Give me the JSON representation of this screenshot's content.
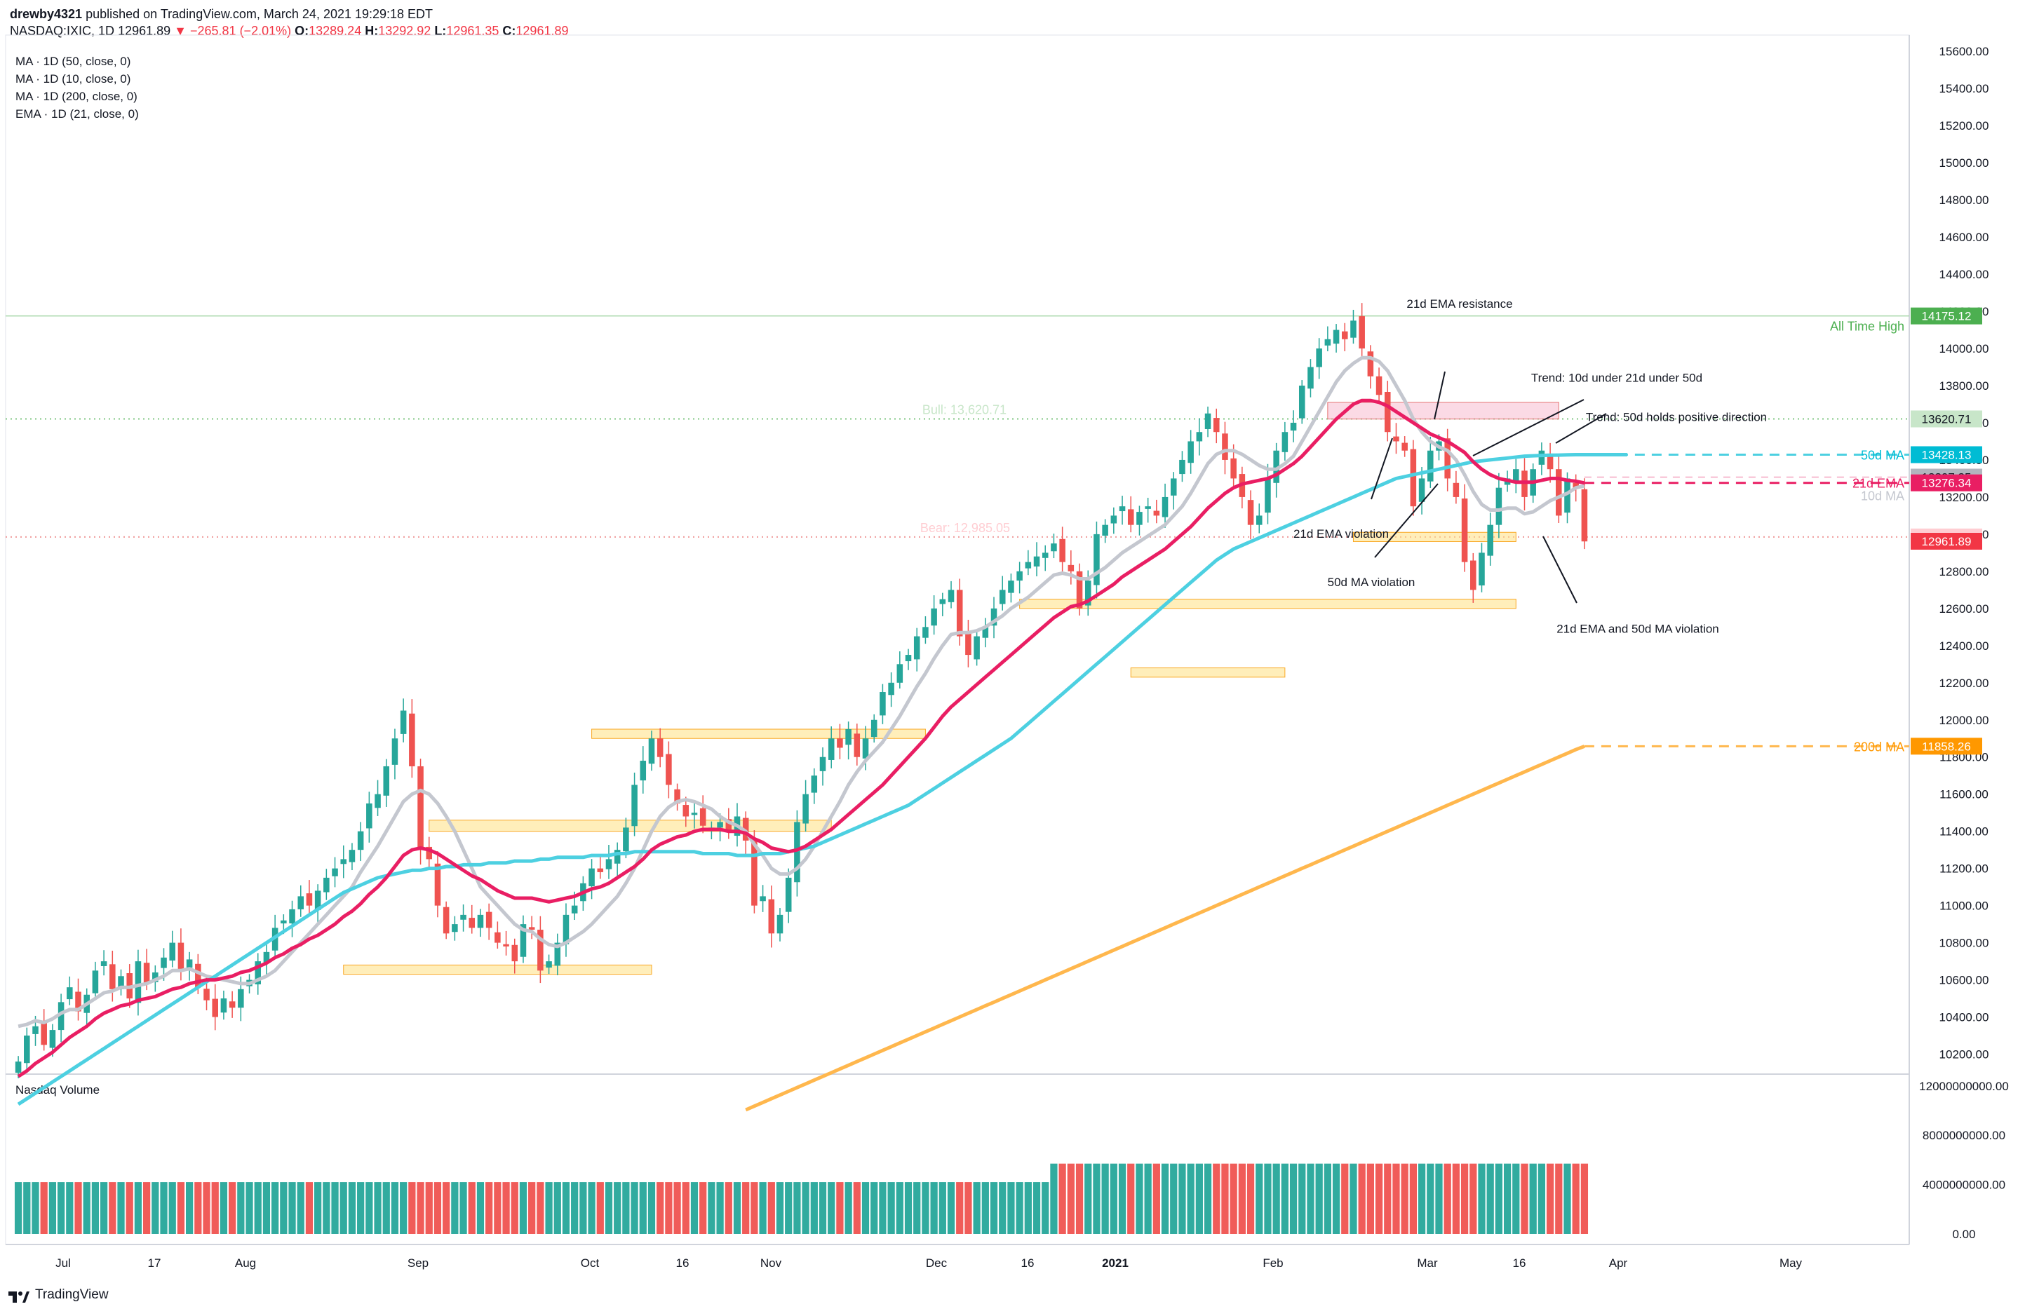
{
  "header": {
    "author": "drewby4321",
    "published": "published on TradingView.com, March 24, 2021 19:29:18 EDT",
    "symbol": "NASDAQ:IXIC, 1D",
    "last": "12961.89",
    "change": "−265.81 (−2.01%)",
    "open_label": "O:",
    "open": "13289.24",
    "high_label": "H:",
    "high": "13292.92",
    "low_label": "L:",
    "low": "12961.35",
    "close_label": "C:",
    "close": "12961.89",
    "down_color": "#f23645"
  },
  "indicators": [
    "MA · 1D (50, close, 0)",
    "MA · 1D (10, close, 0)",
    "MA · 1D (200, close, 0)",
    "EMA · 1D (21, close, 0)"
  ],
  "volume_title": "Nasdaq Volume",
  "logo_text": "TradingView",
  "chart_data": {
    "type": "candlestick",
    "price_axis": [
      "15600.00",
      "15400.00",
      "15200.00",
      "15000.00",
      "14800.00",
      "14600.00",
      "14400.00",
      "14200.00",
      "14000.00",
      "13800.00",
      "13600.00",
      "13400.00",
      "13200.00",
      "13000.00",
      "12800.00",
      "12600.00",
      "12400.00",
      "12200.00",
      "12000.00",
      "11800.00",
      "11600.00",
      "11400.00",
      "11200.00",
      "11000.00",
      "10800.00",
      "10600.00",
      "10400.00",
      "10200.00"
    ],
    "volume_axis": [
      "12000000000.00",
      "8000000000.00",
      "4000000000.00",
      "0.00"
    ],
    "time_axis": [
      "Jul",
      "17",
      "Aug",
      "Sep",
      "Oct",
      "16",
      "Nov",
      "Dec",
      "16",
      "2021",
      "Feb",
      "Mar",
      "16",
      "Apr",
      "May"
    ],
    "ylim": [
      10100,
      15650
    ],
    "price_labels": [
      {
        "value": "14175.12",
        "color": "#4caf50",
        "name": "All Time High"
      },
      {
        "value": "13620.71",
        "color": "#c8e6c9",
        "name": ""
      },
      {
        "value": "13428.13",
        "color": "#00bcd4",
        "name": "50d MA"
      },
      {
        "value": "13307.35",
        "color": "#b2b5be",
        "name": ""
      },
      {
        "value": "13276.34",
        "color": "#e91e63",
        "name": "21d EMA"
      },
      {
        "value": "12985.05",
        "color": "#ffcdd2",
        "name": ""
      },
      {
        "value": "12961.89",
        "color": "#f23645",
        "name": ""
      },
      {
        "value": "11858.26",
        "color": "#ff9800",
        "name": "200d MA"
      }
    ],
    "extra_axis_labels": [
      "10d MA"
    ],
    "levels": {
      "ath": 14175.12,
      "bull": 13620.71,
      "bear": 12985.05
    },
    "level_labels": {
      "ath": "All Time High",
      "bull": "Bull: 13,620.71",
      "bear": "Bear: 12,985.05"
    },
    "annotations": [
      "21d EMA resistance",
      "Trend: 10d under 21d under 50d",
      "Trend: 50d holds positive direction",
      "21d EMA violation",
      "50d MA violation",
      "21d EMA and 50d MA violation"
    ],
    "closes": [
      10160,
      10300,
      10350,
      10250,
      10330,
      10480,
      10560,
      10430,
      10520,
      10650,
      10700,
      10550,
      10620,
      10500,
      10700,
      10580,
      10640,
      10720,
      10800,
      10650,
      10710,
      10560,
      10490,
      10400,
      10500,
      10450,
      10550,
      10600,
      10700,
      10750,
      10880,
      10920,
      10980,
      11050,
      11000,
      11080,
      11150,
      11200,
      11250,
      11300,
      11400,
      11550,
      11600,
      11750,
      11900,
      12050,
      11750,
      11300,
      11250,
      11000,
      10850,
      10900,
      10950,
      10880,
      10950,
      10880,
      10800,
      10780,
      10700,
      10900,
      10870,
      10650,
      10700,
      10800,
      10950,
      11000,
      11120,
      11200,
      11180,
      11250,
      11300,
      11420,
      11650,
      11780,
      11900,
      11800,
      11650,
      11550,
      11480,
      11500,
      11430,
      11420,
      11450,
      11400,
      11480,
      11350,
      11000,
      11050,
      10850,
      10950,
      11150,
      11450,
      11600,
      11700,
      11800,
      11900,
      11850,
      11950,
      11800,
      11900,
      12000,
      12150,
      12200,
      12300,
      12350,
      12450,
      12500,
      12600,
      12650,
      12700,
      12450,
      12350,
      12450,
      12500,
      12600,
      12700,
      12750,
      12800,
      12850,
      12880,
      12900,
      12950,
      12850,
      12800,
      12600,
      12750,
      13000,
      13050,
      13100,
      13150,
      13050,
      13120,
      13150,
      13100,
      13200,
      13300,
      13400,
      13500,
      13550,
      13650,
      13550,
      13400,
      13300,
      13200,
      13050,
      13100,
      13300,
      13450,
      13550,
      13600,
      13800,
      13900,
      14000,
      14050,
      14100,
      14050,
      14150,
      14000,
      13850,
      13750,
      13550,
      13500,
      13450,
      13150,
      13300,
      13450,
      13500,
      13300,
      13200,
      12850,
      12700,
      12900,
      13050,
      13250,
      13300,
      13350,
      13200,
      13350,
      13450,
      13350,
      13100,
      13300,
      13250,
      12961
    ],
    "ma10": [
      10350,
      10360,
      10380,
      10370,
      10390,
      10420,
      10440,
      10440,
      10470,
      10500,
      10530,
      10540,
      10560,
      10560,
      10570,
      10580,
      10600,
      10620,
      10650,
      10650,
      10660,
      10640,
      10620,
      10610,
      10600,
      10590,
      10580,
      10580,
      10600,
      10620,
      10650,
      10700,
      10750,
      10800,
      10850,
      10900,
      10950,
      11000,
      11050,
      11100,
      11180,
      11250,
      11320,
      11400,
      11480,
      11560,
      11600,
      11620,
      11600,
      11550,
      11480,
      11400,
      11300,
      11200,
      11100,
      11050,
      11000,
      10950,
      10900,
      10870,
      10860,
      10820,
      10790,
      10780,
      10800,
      10830,
      10860,
      10900,
      10950,
      11000,
      11050,
      11120,
      11200,
      11300,
      11400,
      11480,
      11530,
      11560,
      11570,
      11560,
      11540,
      11520,
      11480,
      11450,
      11430,
      11400,
      11330,
      11270,
      11200,
      11170,
      11170,
      11200,
      11250,
      11320,
      11400,
      11480,
      11560,
      11650,
      11720,
      11780,
      11830,
      11880,
      11950,
      12020,
      12100,
      12180,
      12250,
      12330,
      12400,
      12460,
      12470,
      12470,
      12480,
      12500,
      12530,
      12560,
      12600,
      12630,
      12660,
      12700,
      12740,
      12780,
      12790,
      12780,
      12760,
      12760,
      12790,
      12820,
      12860,
      12900,
      12930,
      12960,
      12990,
      13020,
      13050,
      13100,
      13150,
      13220,
      13300,
      13380,
      13430,
      13450,
      13450,
      13430,
      13400,
      13370,
      13350,
      13350,
      13380,
      13420,
      13500,
      13580,
      13660,
      13740,
      13820,
      13880,
      13920,
      13950,
      13950,
      13930,
      13880,
      13800,
      13720,
      13620,
      13550,
      13500,
      13470,
      13450,
      13400,
      13320,
      13230,
      13160,
      13130,
      13130,
      13140,
      13140,
      13110,
      13120,
      13150,
      13180,
      13200,
      13220,
      13250,
      13260
    ],
    "ema21": [
      10080,
      10110,
      10150,
      10180,
      10210,
      10250,
      10290,
      10320,
      10350,
      10390,
      10420,
      10440,
      10460,
      10470,
      10490,
      10500,
      10510,
      10530,
      10550,
      10560,
      10580,
      10590,
      10600,
      10600,
      10610,
      10620,
      10640,
      10650,
      10670,
      10690,
      10720,
      10740,
      10770,
      10790,
      10820,
      10840,
      10870,
      10900,
      10940,
      10970,
      11010,
      11060,
      11100,
      11150,
      11210,
      11270,
      11300,
      11310,
      11300,
      11280,
      11250,
      11220,
      11190,
      11160,
      11140,
      11110,
      11080,
      11060,
      11040,
      11040,
      11040,
      11030,
      11020,
      11030,
      11040,
      11050,
      11070,
      11090,
      11100,
      11120,
      11150,
      11180,
      11210,
      11250,
      11300,
      11330,
      11350,
      11370,
      11380,
      11400,
      11410,
      11410,
      11410,
      11400,
      11400,
      11390,
      11360,
      11340,
      11310,
      11300,
      11290,
      11300,
      11320,
      11350,
      11380,
      11410,
      11450,
      11490,
      11530,
      11570,
      11610,
      11650,
      11700,
      11750,
      11800,
      11850,
      11900,
      11960,
      12020,
      12070,
      12110,
      12150,
      12190,
      12230,
      12270,
      12310,
      12350,
      12390,
      12430,
      12470,
      12510,
      12550,
      12580,
      12610,
      12620,
      12640,
      12670,
      12700,
      12730,
      12770,
      12800,
      12830,
      12860,
      12890,
      12920,
      12960,
      13000,
      13040,
      13090,
      13140,
      13180,
      13220,
      13250,
      13270,
      13280,
      13290,
      13300,
      13320,
      13350,
      13380,
      13420,
      13470,
      13520,
      13570,
      13620,
      13660,
      13700,
      13720,
      13720,
      13710,
      13690,
      13660,
      13630,
      13600,
      13570,
      13540,
      13520,
      13500,
      13470,
      13440,
      13390,
      13350,
      13320,
      13300,
      13290,
      13280,
      13280,
      13280,
      13290,
      13300,
      13300,
      13290,
      13285,
      13276
    ],
    "ma50": [
      9930,
      9960,
      9990,
      10020,
      10050,
      10080,
      10110,
      10140,
      10170,
      10200,
      10230,
      10260,
      10290,
      10320,
      10350,
      10380,
      10410,
      10440,
      10470,
      10500,
      10530,
      10560,
      10590,
      10620,
      10650,
      10680,
      10710,
      10740,
      10770,
      10800,
      10830,
      10860,
      10890,
      10920,
      10950,
      10980,
      11010,
      11040,
      11070,
      11090,
      11110,
      11130,
      11150,
      11160,
      11170,
      11180,
      11190,
      11190,
      11200,
      11200,
      11210,
      11210,
      11220,
      11220,
      11220,
      11230,
      11230,
      11230,
      11240,
      11240,
      11240,
      11250,
      11250,
      11260,
      11260,
      11260,
      11260,
      11270,
      11270,
      11270,
      11280,
      11280,
      11290,
      11290,
      11290,
      11290,
      11290,
      11290,
      11290,
      11290,
      11280,
      11280,
      11280,
      11280,
      11270,
      11270,
      11270,
      11280,
      11280,
      11280,
      11290,
      11300,
      11310,
      11320,
      11340,
      11360,
      11380,
      11400,
      11420,
      11440,
      11460,
      11480,
      11500,
      11520,
      11540,
      11570,
      11600,
      11630,
      11660,
      11690,
      11720,
      11750,
      11780,
      11810,
      11840,
      11870,
      11900,
      11940,
      11980,
      12020,
      12060,
      12100,
      12140,
      12180,
      12220,
      12260,
      12300,
      12340,
      12380,
      12420,
      12460,
      12500,
      12540,
      12580,
      12620,
      12660,
      12700,
      12740,
      12780,
      12820,
      12860,
      12890,
      12920,
      12940,
      12960,
      12980,
      13000,
      13020,
      13040,
      13060,
      13080,
      13100,
      13120,
      13140,
      13160,
      13180,
      13200,
      13220,
      13240,
      13260,
      13280,
      13300,
      13310,
      13320,
      13330,
      13340,
      13350,
      13360,
      13370,
      13380,
      13390,
      13395,
      13400,
      13405,
      13410,
      13415,
      13420,
      13422,
      13424,
      13425,
      13426,
      13427,
      13428,
      13428,
      13428,
      13428,
      13428,
      13428,
      13428
    ],
    "ma200": [
      9200,
      9220,
      9240,
      9260,
      9280,
      9300,
      9320,
      9340,
      9360,
      9380,
      9400,
      9420,
      9440,
      9460,
      9480,
      9500,
      9520,
      9540,
      9560,
      9580,
      9600,
      9620,
      9640,
      9660,
      9680,
      9700,
      9720,
      9740,
      9760,
      9780,
      9800,
      9820,
      9840,
      9860,
      9880,
      9900,
      9920,
      9940,
      9960,
      9980,
      10000,
      10020,
      10040,
      10060,
      10080,
      10100,
      10120,
      10140,
      10160,
      10180,
      10200,
      10220,
      10240,
      10260,
      10280,
      10300,
      10320,
      10340,
      10360,
      10380,
      10400,
      10420,
      10440,
      10460,
      10480,
      10500,
      10520,
      10540,
      10560,
      10580,
      10600,
      10620,
      10640,
      10660,
      10680,
      10700,
      10720,
      10740,
      10760,
      10780,
      10800,
      10820,
      10840,
      10860,
      10880,
      10900,
      10920,
      10940,
      10960,
      10980,
      11000,
      11020,
      11040,
      11060,
      11080,
      11100,
      11120,
      11140,
      11160,
      11180,
      11200,
      11220,
      11240,
      11260,
      11280,
      11300,
      11320,
      11340,
      11360,
      11380,
      11400,
      11420,
      11440,
      11460,
      11480,
      11500,
      11520,
      11540,
      11560,
      11580,
      11600,
      11620,
      11640,
      11660,
      11680,
      11700,
      11720,
      11740,
      11760,
      11780,
      11800,
      11820,
      11840,
      11858
    ]
  }
}
